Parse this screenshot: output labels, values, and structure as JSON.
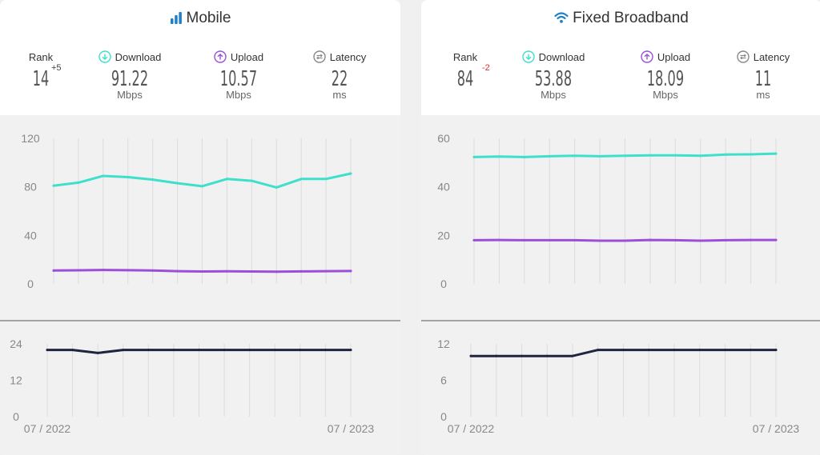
{
  "panels": [
    {
      "title": "Mobile",
      "icon": "signal-bars-icon",
      "rank_label": "Rank",
      "rank": "14",
      "rank_delta": "+5",
      "download_label": "Download",
      "download": "91.22",
      "download_unit": "Mbps",
      "upload_label": "Upload",
      "upload": "10.57",
      "upload_unit": "Mbps",
      "latency_label": "Latency",
      "latency": "22",
      "latency_unit": "ms"
    },
    {
      "title": "Fixed Broadband",
      "icon": "wifi-icon",
      "rank_label": "Rank",
      "rank": "84",
      "rank_delta": "-2",
      "download_label": "Download",
      "download": "53.88",
      "download_unit": "Mbps",
      "upload_label": "Upload",
      "upload": "18.09",
      "upload_unit": "Mbps",
      "latency_label": "Latency",
      "latency": "11",
      "latency_unit": "ms"
    }
  ],
  "colors": {
    "download": "#3ee0cc",
    "upload": "#9b4fd9",
    "latency": "#1f2540",
    "accent": "#1f7fc8",
    "negative": "#e03030"
  },
  "chart_data": [
    {
      "type": "line",
      "x": [
        "07 / 2022",
        "08 / 2022",
        "09 / 2022",
        "10 / 2022",
        "11 / 2022",
        "12 / 2022",
        "01 / 2023",
        "02 / 2023",
        "03 / 2023",
        "04 / 2023",
        "05 / 2023",
        "06 / 2023",
        "07 / 2023"
      ],
      "xticks": [
        "07 / 2022",
        "07 / 2023"
      ],
      "yticks": [
        "0",
        "40",
        "80",
        "120"
      ],
      "ylim": [
        0,
        120
      ],
      "series": [
        {
          "values": [
            81,
            83.5,
            89,
            88,
            86,
            83,
            80.5,
            86.5,
            85,
            79.5,
            86.5,
            86.5,
            91
          ]
        },
        {
          "values": [
            11,
            11.2,
            11.5,
            11.3,
            11,
            10.5,
            10.2,
            10.4,
            10.2,
            10,
            10.3,
            10.5,
            10.6
          ]
        }
      ]
    },
    {
      "type": "line",
      "x": [
        "07 / 2022",
        "08 / 2022",
        "09 / 2022",
        "10 / 2022",
        "11 / 2022",
        "12 / 2022",
        "01 / 2023",
        "02 / 2023",
        "03 / 2023",
        "04 / 2023",
        "05 / 2023",
        "06 / 2023",
        "07 / 2023"
      ],
      "xticks": [
        "07 / 2022",
        "07 / 2023"
      ],
      "yticks": [
        "0",
        "12",
        "24"
      ],
      "ylim": [
        0,
        24
      ],
      "series": [
        {
          "values": [
            22,
            22,
            21,
            22,
            22,
            22,
            22,
            22,
            22,
            22,
            22,
            22,
            22
          ]
        }
      ]
    },
    {
      "type": "line",
      "x": [
        "07 / 2022",
        "08 / 2022",
        "09 / 2022",
        "10 / 2022",
        "11 / 2022",
        "12 / 2022",
        "01 / 2023",
        "02 / 2023",
        "03 / 2023",
        "04 / 2023",
        "05 / 2023",
        "06 / 2023",
        "07 / 2023"
      ],
      "xticks": [
        "07 / 2022",
        "07 / 2023"
      ],
      "yticks": [
        "0",
        "20",
        "40",
        "60"
      ],
      "ylim": [
        0,
        60
      ],
      "series": [
        {
          "values": [
            52.3,
            52.5,
            52.3,
            52.6,
            52.8,
            52.6,
            52.8,
            53,
            53,
            52.8,
            53.3,
            53.4,
            53.7
          ]
        },
        {
          "values": [
            18,
            18.1,
            18,
            18,
            18,
            17.8,
            17.8,
            18.1,
            18,
            17.8,
            18,
            18.1,
            18.1
          ]
        }
      ]
    },
    {
      "type": "line",
      "x": [
        "07 / 2022",
        "08 / 2022",
        "09 / 2022",
        "10 / 2022",
        "11 / 2022",
        "12 / 2022",
        "01 / 2023",
        "02 / 2023",
        "03 / 2023",
        "04 / 2023",
        "05 / 2023",
        "06 / 2023",
        "07 / 2023"
      ],
      "xticks": [
        "07 / 2022",
        "07 / 2023"
      ],
      "yticks": [
        "0",
        "6",
        "12"
      ],
      "ylim": [
        0,
        12
      ],
      "series": [
        {
          "values": [
            10,
            10,
            10,
            10,
            10,
            11,
            11,
            11,
            11,
            11,
            11,
            11,
            11
          ]
        }
      ]
    }
  ]
}
